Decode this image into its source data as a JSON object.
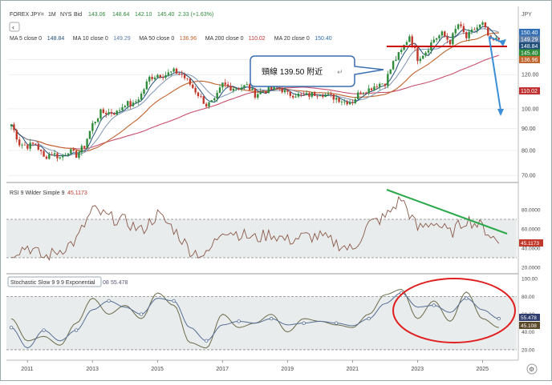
{
  "header": {
    "symbol": "FOREX JPY=",
    "interval": "1M",
    "exchange": "NYS",
    "price_type": "Bid",
    "open": "143.06",
    "high": "148.64",
    "low": "142.10",
    "close": "145.40",
    "change": "2.33 (+1.63%)",
    "currency": "JPY",
    "back_symbol": "‹",
    "settings_symbol": "⚙"
  },
  "ma_legend": [
    {
      "label": "MA 5 close 0",
      "value": "148.84",
      "color": "#1f4e79"
    },
    {
      "label": "MA 10 close 0",
      "value": "149.29",
      "color": "#5b7ba7"
    },
    {
      "label": "MA 50 close 0",
      "value": "136.96",
      "color": "#c0622c"
    },
    {
      "label": "MA 200 close 0",
      "value": "110.02",
      "color": "#c03030"
    },
    {
      "label": "MA 20 close 0",
      "value": "150.40",
      "color": "#2f6db5"
    }
  ],
  "annotation": {
    "text": "頸線 139.50 附近",
    "neckline": 139.5
  },
  "price_axis": {
    "ticks": [
      "70.00",
      "80.00",
      "90.00",
      "100.00",
      "120.00",
      "130.00"
    ],
    "tags": [
      {
        "text": "150.40",
        "value": 150.4,
        "color": "#2f6db5"
      },
      {
        "text": "149.29",
        "value": 149.29,
        "color": "#5b7ba7"
      },
      {
        "text": "148.84",
        "value": 148.84,
        "color": "#1f4e79"
      },
      {
        "text": "145.40",
        "value": 145.4,
        "color": "#2e8b3a"
      },
      {
        "text": "136.96",
        "value": 136.96,
        "color": "#c0622c"
      },
      {
        "text": "110.02",
        "value": 110.02,
        "color": "#c03030"
      }
    ]
  },
  "rsi_panel": {
    "label": "RSI 9 Wilder Simple 9",
    "value": "45.1173",
    "ticks": [
      "80.0000",
      "60.0000",
      "40.0000",
      "20.0000"
    ],
    "tag": "45.1173"
  },
  "stoch_panel": {
    "label": "Stochastic Slow 9 9 9 Exponential",
    "value": "55.478",
    "value_prefix": "08",
    "ticks": [
      "100.00",
      "80.00",
      "60.00",
      "40.00",
      "20.00"
    ],
    "tags": [
      "55.478",
      "45.108"
    ]
  },
  "x_axis": {
    "labels": [
      "2011",
      "2013",
      "2015",
      "2017",
      "2019",
      "2021",
      "2023",
      "2025"
    ]
  },
  "colors": {
    "up": "#2e8b3a",
    "down": "#c0392b",
    "ma5": "#1f4e79",
    "ma10": "#7f95b4",
    "ma50": "#c0622c",
    "ma200": "#c84f6e",
    "neckline": "#cc0000",
    "arrow": "#3a8fd6",
    "rsi_line": "#8a5a4a",
    "trend_line": "#2aa84a",
    "stoch_k": "#6b6b4b",
    "stoch_d": "#556e96",
    "circle": "#e02020",
    "band_fill": "#e8ecec"
  },
  "chart_data": [
    {
      "type": "candlestick",
      "title": "FOREX JPY=",
      "x_labels": [
        "2011",
        "2013",
        "2015",
        "2017",
        "2019",
        "2021",
        "2023",
        "2025"
      ],
      "yunit": "JPY",
      "ylim": [
        70,
        155
      ],
      "y_log": true,
      "close_path": [
        [
          2010.5,
          92
        ],
        [
          2010.75,
          83
        ],
        [
          2011.0,
          82
        ],
        [
          2011.25,
          83
        ],
        [
          2011.5,
          77
        ],
        [
          2011.75,
          79
        ],
        [
          2012.0,
          77
        ],
        [
          2012.25,
          80
        ],
        [
          2012.5,
          78
        ],
        [
          2012.75,
          82
        ],
        [
          2013.0,
          92
        ],
        [
          2013.25,
          98
        ],
        [
          2013.5,
          98
        ],
        [
          2013.75,
          98
        ],
        [
          2014.0,
          103
        ],
        [
          2014.25,
          102
        ],
        [
          2014.5,
          108
        ],
        [
          2014.75,
          118
        ],
        [
          2015.0,
          120
        ],
        [
          2015.25,
          120
        ],
        [
          2015.5,
          122
        ],
        [
          2015.75,
          120
        ],
        [
          2016.0,
          114
        ],
        [
          2016.25,
          108
        ],
        [
          2016.5,
          102
        ],
        [
          2016.75,
          104
        ],
        [
          2017.0,
          114
        ],
        [
          2017.25,
          112
        ],
        [
          2017.5,
          112
        ],
        [
          2017.75,
          113
        ],
        [
          2018.0,
          108
        ],
        [
          2018.25,
          110
        ],
        [
          2018.5,
          111
        ],
        [
          2018.75,
          112
        ],
        [
          2019.0,
          108
        ],
        [
          2019.25,
          108
        ],
        [
          2019.5,
          107
        ],
        [
          2019.75,
          108
        ],
        [
          2020.0,
          109
        ],
        [
          2020.25,
          107
        ],
        [
          2020.5,
          106
        ],
        [
          2020.75,
          104
        ],
        [
          2021.0,
          104
        ],
        [
          2021.25,
          110
        ],
        [
          2021.5,
          111
        ],
        [
          2021.75,
          114
        ],
        [
          2022.0,
          115
        ],
        [
          2022.25,
          128
        ],
        [
          2022.5,
          136
        ],
        [
          2022.75,
          148
        ],
        [
          2023.0,
          131
        ],
        [
          2023.25,
          136
        ],
        [
          2023.5,
          145
        ],
        [
          2023.75,
          149
        ],
        [
          2024.0,
          143
        ],
        [
          2024.25,
          157
        ],
        [
          2024.5,
          146
        ],
        [
          2024.75,
          153
        ],
        [
          2025.0,
          157
        ],
        [
          2025.25,
          143
        ],
        [
          2025.5,
          145
        ]
      ]
    },
    {
      "type": "line",
      "title": "RSI 9 Wilder Simple 9",
      "ylim": [
        20,
        100
      ],
      "bands": [
        70,
        30
      ],
      "x": [
        2010.5,
        2011.0,
        2011.5,
        2012.0,
        2012.5,
        2013.0,
        2013.5,
        2014.0,
        2014.5,
        2015.0,
        2015.5,
        2016.0,
        2016.5,
        2017.0,
        2017.5,
        2018.0,
        2018.5,
        2019.0,
        2019.5,
        2020.0,
        2020.5,
        2021.0,
        2021.5,
        2022.0,
        2022.5,
        2023.0,
        2023.5,
        2024.0,
        2024.5,
        2025.0,
        2025.5
      ],
      "values": [
        35,
        42,
        30,
        38,
        48,
        80,
        72,
        68,
        58,
        75,
        60,
        38,
        32,
        60,
        55,
        50,
        55,
        48,
        52,
        52,
        45,
        38,
        65,
        72,
        92,
        60,
        68,
        55,
        70,
        62,
        45
      ]
    },
    {
      "type": "line",
      "title": "Stochastic Slow 9 9 9 Exponential",
      "ylim": [
        10,
        100
      ],
      "x": [
        2010.5,
        2011.0,
        2011.5,
        2012.0,
        2012.5,
        2013.0,
        2013.5,
        2014.0,
        2014.5,
        2015.0,
        2015.5,
        2016.0,
        2016.5,
        2017.0,
        2017.5,
        2018.0,
        2018.5,
        2019.0,
        2019.5,
        2020.0,
        2020.5,
        2021.0,
        2021.5,
        2022.0,
        2022.5,
        2023.0,
        2023.5,
        2024.0,
        2024.5,
        2025.0,
        2025.5
      ],
      "series": [
        {
          "values": [
            55,
            30,
            35,
            25,
            50,
            78,
            60,
            70,
            55,
            84,
            70,
            28,
            22,
            60,
            45,
            50,
            60,
            40,
            55,
            52,
            48,
            45,
            60,
            82,
            88,
            55,
            75,
            52,
            85,
            55,
            45
          ]
        },
        {
          "values": [
            45,
            22,
            42,
            30,
            42,
            65,
            75,
            68,
            60,
            78,
            75,
            45,
            30,
            48,
            52,
            50,
            55,
            48,
            50,
            52,
            50,
            47,
            55,
            72,
            84,
            68,
            70,
            62,
            78,
            65,
            55
          ]
        }
      ]
    }
  ]
}
